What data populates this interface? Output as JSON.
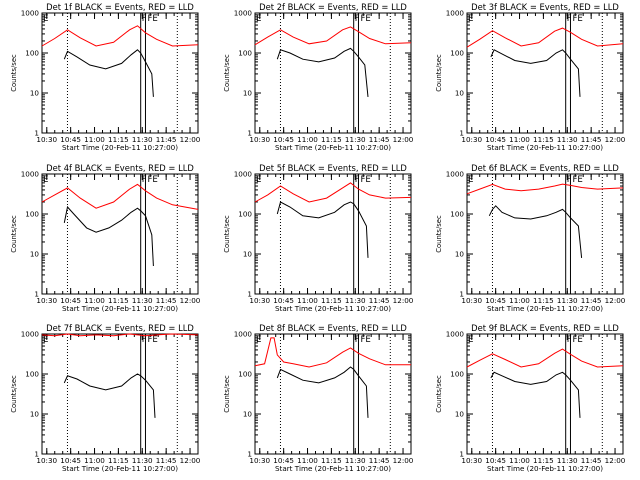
{
  "figure": {
    "panel_titles": [
      "Det 1f BLACK = Events, RED = LLD",
      "Det 2f BLACK = Events, RED = LLD",
      "Det 3f BLACK = Events, RED = LLD",
      "Det 4f BLACK = Events, RED = LLD",
      "Det 5f BLACK = Events, RED = LLD",
      "Det 6f BLACK = Events, RED = LLD",
      "Det 7f BLACK = Events, RED = LLD",
      "Det 8f BLACK = Events, RED = LLD",
      "Det 9f BLACK = Events, RED = LLD"
    ],
    "xlabel": "Start Time (20-Feb-11 10:27:00)",
    "ylabel": "Counts/sec",
    "marker_E": "E",
    "marker_F": "F",
    "marker_FE": "FE",
    "x_tick_labels_a": [
      "10:30",
      "10:45",
      "11:00",
      "11:15",
      "11:30",
      "11:45",
      "12:00"
    ],
    "x_tick_labels_b": [
      "10:30",
      "10:45",
      "11:00",
      "11:15",
      "11:30",
      "11:45",
      "12:00"
    ],
    "y_tick_labels": [
      "1",
      "10",
      "100",
      "1000"
    ],
    "colors": {
      "events": "#000000",
      "lld": "#ff0000",
      "axes": "#000000"
    }
  },
  "chart_data": {
    "type": "line",
    "x_unit": "minutes since 10:27:00 (20-Feb-11)",
    "xlim": [
      0,
      98
    ],
    "ylim": [
      1,
      1000
    ],
    "yscale": "log",
    "grid": false,
    "legend": "none",
    "dotted_verticals": [
      16,
      85
    ],
    "solid_verticals": [
      62,
      65
    ],
    "panels": [
      {
        "det": "1f",
        "x_range": "a",
        "events": [
          [
            14,
            70
          ],
          [
            16,
            110
          ],
          [
            22,
            80
          ],
          [
            30,
            50
          ],
          [
            40,
            40
          ],
          [
            50,
            55
          ],
          [
            56,
            90
          ],
          [
            60,
            120
          ],
          [
            62,
            100
          ],
          [
            65,
            60
          ],
          [
            69,
            30
          ],
          [
            70,
            8
          ]
        ],
        "lld": [
          [
            0,
            150
          ],
          [
            8,
            230
          ],
          [
            16,
            380
          ],
          [
            24,
            240
          ],
          [
            34,
            150
          ],
          [
            45,
            185
          ],
          [
            55,
            380
          ],
          [
            60,
            480
          ],
          [
            65,
            320
          ],
          [
            72,
            220
          ],
          [
            82,
            150
          ],
          [
            98,
            160
          ]
        ]
      },
      {
        "det": "2f",
        "x_range": "a",
        "events": [
          [
            14,
            70
          ],
          [
            16,
            120
          ],
          [
            22,
            100
          ],
          [
            30,
            70
          ],
          [
            40,
            60
          ],
          [
            50,
            75
          ],
          [
            56,
            110
          ],
          [
            60,
            130
          ],
          [
            62,
            110
          ],
          [
            65,
            80
          ],
          [
            69,
            50
          ],
          [
            71,
            8
          ]
        ],
        "lld": [
          [
            0,
            160
          ],
          [
            8,
            250
          ],
          [
            16,
            380
          ],
          [
            24,
            250
          ],
          [
            34,
            170
          ],
          [
            45,
            200
          ],
          [
            55,
            380
          ],
          [
            60,
            450
          ],
          [
            65,
            340
          ],
          [
            72,
            230
          ],
          [
            82,
            170
          ],
          [
            98,
            180
          ]
        ]
      },
      {
        "det": "3f",
        "x_range": "b",
        "events": [
          [
            15,
            80
          ],
          [
            17,
            120
          ],
          [
            22,
            95
          ],
          [
            30,
            65
          ],
          [
            40,
            55
          ],
          [
            50,
            65
          ],
          [
            56,
            100
          ],
          [
            60,
            120
          ],
          [
            62,
            100
          ],
          [
            65,
            70
          ],
          [
            70,
            40
          ],
          [
            71,
            8
          ]
        ],
        "lld": [
          [
            0,
            140
          ],
          [
            8,
            220
          ],
          [
            16,
            360
          ],
          [
            24,
            240
          ],
          [
            34,
            150
          ],
          [
            45,
            180
          ],
          [
            55,
            350
          ],
          [
            60,
            420
          ],
          [
            65,
            330
          ],
          [
            72,
            220
          ],
          [
            82,
            150
          ],
          [
            98,
            170
          ]
        ]
      },
      {
        "det": "4f",
        "x_range": "a",
        "events": [
          [
            14,
            60
          ],
          [
            16,
            150
          ],
          [
            20,
            100
          ],
          [
            28,
            45
          ],
          [
            34,
            35
          ],
          [
            42,
            45
          ],
          [
            50,
            70
          ],
          [
            56,
            110
          ],
          [
            60,
            140
          ],
          [
            62,
            120
          ],
          [
            65,
            90
          ],
          [
            69,
            30
          ],
          [
            70,
            5
          ]
        ],
        "lld": [
          [
            0,
            200
          ],
          [
            8,
            300
          ],
          [
            16,
            450
          ],
          [
            24,
            250
          ],
          [
            34,
            140
          ],
          [
            45,
            200
          ],
          [
            55,
            420
          ],
          [
            60,
            550
          ],
          [
            65,
            380
          ],
          [
            72,
            250
          ],
          [
            82,
            170
          ],
          [
            98,
            130
          ]
        ]
      },
      {
        "det": "5f",
        "x_range": "a",
        "events": [
          [
            14,
            100
          ],
          [
            16,
            200
          ],
          [
            22,
            150
          ],
          [
            30,
            90
          ],
          [
            40,
            80
          ],
          [
            50,
            110
          ],
          [
            56,
            170
          ],
          [
            60,
            200
          ],
          [
            62,
            180
          ],
          [
            65,
            120
          ],
          [
            70,
            50
          ],
          [
            71,
            8
          ]
        ],
        "lld": [
          [
            0,
            200
          ],
          [
            8,
            300
          ],
          [
            16,
            500
          ],
          [
            24,
            320
          ],
          [
            34,
            200
          ],
          [
            45,
            250
          ],
          [
            55,
            450
          ],
          [
            60,
            600
          ],
          [
            65,
            420
          ],
          [
            72,
            300
          ],
          [
            82,
            250
          ],
          [
            98,
            260
          ]
        ]
      },
      {
        "det": "6f",
        "x_range": "b",
        "events": [
          [
            14,
            90
          ],
          [
            16,
            130
          ],
          [
            18,
            160
          ],
          [
            22,
            110
          ],
          [
            30,
            80
          ],
          [
            40,
            75
          ],
          [
            50,
            90
          ],
          [
            56,
            110
          ],
          [
            60,
            130
          ],
          [
            62,
            110
          ],
          [
            65,
            80
          ],
          [
            70,
            50
          ],
          [
            72,
            8
          ]
        ],
        "lld": [
          [
            0,
            320
          ],
          [
            8,
            420
          ],
          [
            16,
            550
          ],
          [
            24,
            420
          ],
          [
            34,
            380
          ],
          [
            45,
            420
          ],
          [
            55,
            500
          ],
          [
            60,
            560
          ],
          [
            65,
            520
          ],
          [
            72,
            460
          ],
          [
            82,
            420
          ],
          [
            98,
            450
          ]
        ]
      },
      {
        "det": "7f",
        "x_range": "b",
        "events": [
          [
            14,
            60
          ],
          [
            16,
            90
          ],
          [
            22,
            75
          ],
          [
            30,
            50
          ],
          [
            40,
            40
          ],
          [
            50,
            50
          ],
          [
            56,
            80
          ],
          [
            60,
            100
          ],
          [
            62,
            90
          ],
          [
            65,
            70
          ],
          [
            70,
            40
          ],
          [
            71,
            8
          ]
        ],
        "lld": [
          [
            0,
            950
          ],
          [
            8,
            900
          ],
          [
            16,
            1000
          ],
          [
            24,
            900
          ],
          [
            34,
            950
          ],
          [
            45,
            900
          ],
          [
            55,
            1000
          ],
          [
            60,
            950
          ],
          [
            65,
            900
          ],
          [
            72,
            950
          ],
          [
            82,
            1000
          ],
          [
            98,
            950
          ]
        ]
      },
      {
        "det": "8f",
        "x_range": "a",
        "events": [
          [
            14,
            80
          ],
          [
            16,
            130
          ],
          [
            22,
            100
          ],
          [
            30,
            70
          ],
          [
            40,
            60
          ],
          [
            50,
            80
          ],
          [
            56,
            110
          ],
          [
            60,
            150
          ],
          [
            62,
            130
          ],
          [
            65,
            90
          ],
          [
            70,
            50
          ],
          [
            71,
            8
          ]
        ],
        "lld": [
          [
            0,
            160
          ],
          [
            6,
            180
          ],
          [
            10,
            800
          ],
          [
            12,
            800
          ],
          [
            14,
            300
          ],
          [
            18,
            200
          ],
          [
            24,
            180
          ],
          [
            34,
            150
          ],
          [
            45,
            190
          ],
          [
            55,
            350
          ],
          [
            60,
            450
          ],
          [
            65,
            330
          ],
          [
            72,
            240
          ],
          [
            82,
            170
          ],
          [
            98,
            170
          ]
        ]
      },
      {
        "det": "9f",
        "x_range": "b",
        "events": [
          [
            15,
            80
          ],
          [
            17,
            110
          ],
          [
            22,
            90
          ],
          [
            30,
            65
          ],
          [
            40,
            55
          ],
          [
            50,
            65
          ],
          [
            56,
            95
          ],
          [
            60,
            110
          ],
          [
            62,
            95
          ],
          [
            65,
            70
          ],
          [
            70,
            40
          ],
          [
            71,
            8
          ]
        ],
        "lld": [
          [
            0,
            150
          ],
          [
            8,
            220
          ],
          [
            16,
            320
          ],
          [
            24,
            230
          ],
          [
            34,
            150
          ],
          [
            45,
            180
          ],
          [
            55,
            330
          ],
          [
            60,
            420
          ],
          [
            65,
            310
          ],
          [
            72,
            210
          ],
          [
            82,
            150
          ],
          [
            98,
            160
          ]
        ]
      }
    ]
  }
}
